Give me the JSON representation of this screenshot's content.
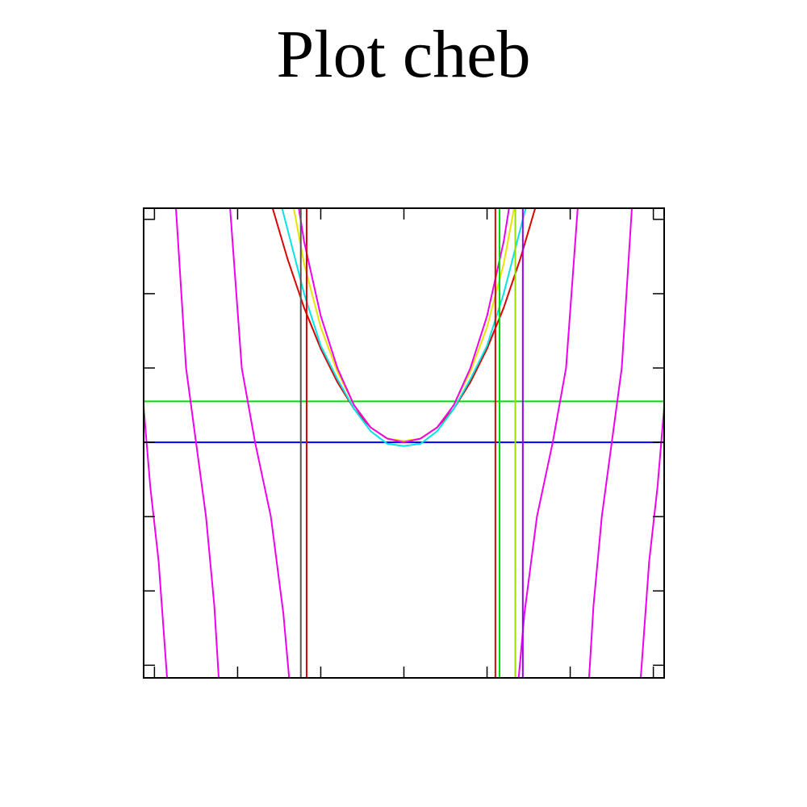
{
  "chart_data": {
    "type": "line",
    "title": "Plot cheb",
    "xlim": [
      -3.13,
      3.13
    ],
    "ylim": [
      -3.17,
      3.15
    ],
    "xticks": [
      -3,
      -2,
      -1,
      0,
      1,
      2,
      3
    ],
    "yticks": [
      -3,
      -2,
      -1,
      0,
      1,
      2,
      3
    ],
    "series": [
      {
        "color": "#0000ff",
        "x": [
          -3.13,
          3.13
        ],
        "values": [
          0,
          0
        ]
      },
      {
        "color": "#00dd00",
        "x": [
          -3.13,
          3.13
        ],
        "values": [
          0.55,
          0.55
        ]
      },
      {
        "color": "#dd0000",
        "x": [
          -1.6,
          -1.4,
          -1.2,
          -1.0,
          -0.8,
          -0.6,
          -0.4,
          -0.2,
          0,
          0.2,
          0.4,
          0.6,
          0.8,
          1.0,
          1.2,
          1.4,
          1.6
        ],
        "values": [
          3.23,
          2.47,
          1.81,
          1.26,
          0.81,
          0.45,
          0.2,
          0.05,
          0,
          0.05,
          0.2,
          0.45,
          0.81,
          1.26,
          1.81,
          2.47,
          3.23
        ]
      },
      {
        "color": "#00e5e5",
        "x": [
          -1.5,
          -1.2,
          -1.0,
          -0.8,
          -0.6,
          -0.4,
          -0.2,
          0,
          0.2,
          0.4,
          0.6,
          0.8,
          1.0,
          1.2,
          1.5
        ],
        "values": [
          3.3,
          2.0,
          1.3,
          0.85,
          0.45,
          0.15,
          -0.02,
          -0.05,
          -0.02,
          0.15,
          0.45,
          0.85,
          1.3,
          2.0,
          3.3
        ]
      },
      {
        "color": "#e5e500",
        "x": [
          -1.35,
          -1.2,
          -1.0,
          -0.8,
          -0.6,
          -0.4,
          -0.2,
          0,
          0.2,
          0.4,
          0.6,
          0.8,
          1.0,
          1.2,
          1.35
        ],
        "values": [
          3.3,
          2.4,
          1.55,
          0.95,
          0.5,
          0.2,
          0.05,
          0.02,
          0.05,
          0.2,
          0.5,
          0.95,
          1.55,
          2.4,
          3.3
        ]
      },
      {
        "color": "#ee00ee",
        "x": [
          -3.13,
          -3.05,
          -2.95,
          -2.84,
          null,
          -2.75,
          -2.62,
          -2.5,
          -2.38,
          -2.28,
          -2.22,
          null,
          -2.1,
          -1.95,
          -1.79,
          -1.6,
          -1.45,
          -1.37,
          null,
          -1.3,
          -1.2,
          -1.0,
          -0.8,
          -0.6,
          -0.4,
          -0.2,
          0,
          0.2,
          0.4,
          0.6,
          0.8,
          1.0,
          1.2,
          1.3,
          null,
          1.37,
          1.45,
          1.6,
          1.79,
          1.95,
          2.1,
          null,
          2.22,
          2.28,
          2.38,
          2.5,
          2.62,
          2.75,
          null,
          2.84,
          2.95,
          3.05,
          3.13
        ],
        "values": [
          0.47,
          -0.6,
          -1.6,
          -3.3,
          null,
          3.3,
          1.0,
          0,
          -1.0,
          -2.2,
          -3.3,
          null,
          3.3,
          1.0,
          0,
          -1.0,
          -2.3,
          -3.3,
          null,
          3.4,
          2.7,
          1.7,
          1.0,
          0.5,
          0.2,
          0.05,
          0,
          0.05,
          0.2,
          0.5,
          1.0,
          1.7,
          2.7,
          3.4,
          null,
          -3.3,
          -2.3,
          -1.0,
          0,
          1.0,
          3.3,
          null,
          -3.3,
          -2.2,
          -1.0,
          0,
          1.0,
          3.3,
          null,
          -3.3,
          -1.6,
          -0.6,
          0.47
        ]
      },
      {
        "color": "#dd0000",
        "x": [
          -1.17,
          -1.17
        ],
        "values": [
          -4,
          4
        ]
      },
      {
        "color": "#555555",
        "x": [
          -1.24,
          -1.24
        ],
        "values": [
          -4,
          4
        ]
      },
      {
        "color": "#dd0000",
        "x": [
          1.1,
          1.1
        ],
        "values": [
          -4,
          4
        ]
      },
      {
        "color": "#00dd00",
        "x": [
          1.15,
          1.15
        ],
        "values": [
          -4,
          4
        ]
      },
      {
        "color": "#99dd00",
        "x": [
          1.34,
          1.34
        ],
        "values": [
          -4,
          4
        ]
      },
      {
        "color": "#9900ee",
        "x": [
          1.43,
          1.43
        ],
        "values": [
          -4,
          4
        ]
      }
    ]
  }
}
